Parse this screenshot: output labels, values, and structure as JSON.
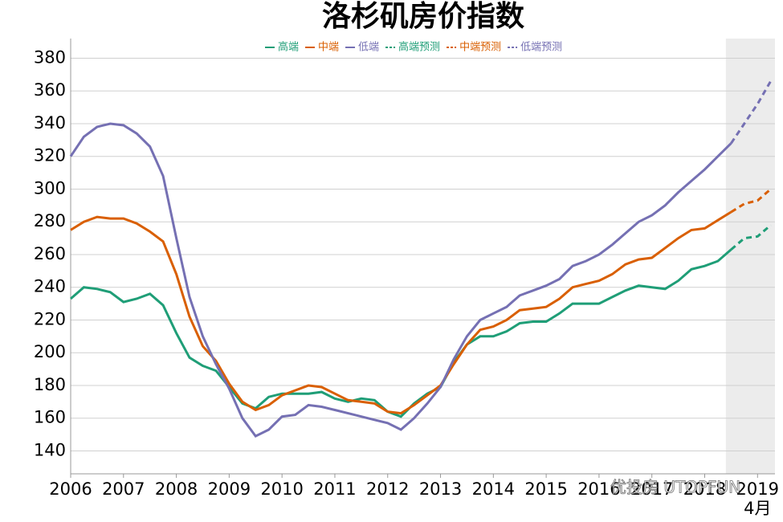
{
  "chart_data": {
    "type": "line",
    "title": "洛杉矶房价指数",
    "x": [
      2006,
      2006.25,
      2006.5,
      2006.75,
      2007,
      2007.25,
      2007.5,
      2007.75,
      2008,
      2008.25,
      2008.5,
      2008.75,
      2009,
      2009.25,
      2009.5,
      2009.75,
      2010,
      2010.25,
      2010.5,
      2010.75,
      2011,
      2011.25,
      2011.5,
      2011.75,
      2012,
      2012.25,
      2012.5,
      2012.75,
      2013,
      2013.25,
      2013.5,
      2013.75,
      2014,
      2014.25,
      2014.5,
      2014.75,
      2015,
      2015.25,
      2015.5,
      2015.75,
      2016,
      2016.25,
      2016.5,
      2016.75,
      2017,
      2017.25,
      2017.5,
      2017.75,
      2018,
      2018.25,
      2018.5,
      2018.75,
      2019,
      2019.25
    ],
    "series": [
      {
        "name": "高端",
        "color": "#1f9e77",
        "dashed": false,
        "values": [
          233,
          240,
          239,
          237,
          231,
          233,
          236,
          229,
          212,
          197,
          192,
          189,
          179,
          169,
          166,
          173,
          175,
          175,
          175,
          176,
          172,
          170,
          172,
          171,
          164,
          161,
          169,
          175,
          179,
          194,
          205,
          210,
          210,
          213,
          218,
          219,
          219,
          224,
          230,
          230,
          230,
          234,
          238,
          241,
          240,
          239,
          244,
          251,
          253,
          256,
          263,
          null,
          null,
          null
        ]
      },
      {
        "name": "中端",
        "color": "#d95f02",
        "dashed": false,
        "values": [
          275,
          280,
          283,
          282,
          282,
          279,
          274,
          268,
          248,
          222,
          204,
          195,
          181,
          170,
          165,
          168,
          174,
          177,
          180,
          179,
          175,
          171,
          170,
          169,
          164,
          163,
          168,
          174,
          180,
          193,
          205,
          214,
          216,
          220,
          226,
          227,
          228,
          233,
          240,
          242,
          244,
          248,
          254,
          257,
          258,
          264,
          270,
          275,
          276,
          281,
          286,
          null,
          null,
          null
        ]
      },
      {
        "name": "低端",
        "color": "#7570b3",
        "dashed": false,
        "values": [
          320,
          332,
          338,
          340,
          339,
          334,
          326,
          308,
          270,
          234,
          210,
          193,
          178,
          160,
          149,
          153,
          161,
          162,
          168,
          167,
          165,
          163,
          161,
          159,
          157,
          153,
          160,
          169,
          179,
          196,
          210,
          220,
          224,
          228,
          235,
          238,
          241,
          245,
          253,
          256,
          260,
          266,
          273,
          280,
          284,
          290,
          298,
          305,
          312,
          320,
          328,
          null,
          null,
          null
        ]
      },
      {
        "name": "高端预测",
        "color": "#1f9e77",
        "dashed": true,
        "values": [
          null,
          null,
          null,
          null,
          null,
          null,
          null,
          null,
          null,
          null,
          null,
          null,
          null,
          null,
          null,
          null,
          null,
          null,
          null,
          null,
          null,
          null,
          null,
          null,
          null,
          null,
          null,
          null,
          null,
          null,
          null,
          null,
          null,
          null,
          null,
          null,
          null,
          null,
          null,
          null,
          null,
          null,
          null,
          null,
          null,
          null,
          null,
          null,
          null,
          null,
          263,
          270,
          271,
          278
        ]
      },
      {
        "name": "中端预测",
        "color": "#d95f02",
        "dashed": true,
        "values": [
          null,
          null,
          null,
          null,
          null,
          null,
          null,
          null,
          null,
          null,
          null,
          null,
          null,
          null,
          null,
          null,
          null,
          null,
          null,
          null,
          null,
          null,
          null,
          null,
          null,
          null,
          null,
          null,
          null,
          null,
          null,
          null,
          null,
          null,
          null,
          null,
          null,
          null,
          null,
          null,
          null,
          null,
          null,
          null,
          null,
          null,
          null,
          null,
          null,
          null,
          286,
          291,
          293,
          300
        ]
      },
      {
        "name": "低端预测",
        "color": "#7570b3",
        "dashed": true,
        "values": [
          null,
          null,
          null,
          null,
          null,
          null,
          null,
          null,
          null,
          null,
          null,
          null,
          null,
          null,
          null,
          null,
          null,
          null,
          null,
          null,
          null,
          null,
          null,
          null,
          null,
          null,
          null,
          null,
          null,
          null,
          null,
          null,
          null,
          null,
          null,
          null,
          null,
          null,
          null,
          null,
          null,
          null,
          null,
          null,
          null,
          null,
          null,
          null,
          null,
          null,
          328,
          340,
          352,
          366
        ]
      }
    ],
    "xlim": [
      2006,
      2019.33
    ],
    "xticks": [
      2006,
      2007,
      2008,
      2009,
      2010,
      2011,
      2012,
      2013,
      2014,
      2015,
      2016,
      2017,
      2018,
      2019
    ],
    "x_sublabel": "4月",
    "ylim": [
      126,
      392
    ],
    "yticks": [
      140,
      160,
      180,
      200,
      220,
      240,
      260,
      280,
      300,
      320,
      340,
      360,
      380
    ],
    "grid": true,
    "shaded_xrange": [
      2018.4,
      2019.33
    ],
    "shade_color": "#ececec",
    "watermark": "优投房 UTOPFUN"
  }
}
